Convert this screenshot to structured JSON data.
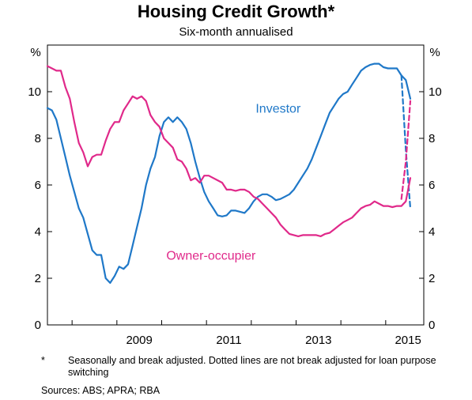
{
  "title": "Housing Credit Growth*",
  "subtitle": "Six-month annualised",
  "footnote_marker": "*",
  "footnote": "Seasonally and break adjusted. Dotted lines are not break adjusted for loan purpose switching",
  "sources": "Sources:  ABS; APRA; RBA",
  "chart_data": {
    "type": "line",
    "y_unit_left": "%",
    "y_unit_right": "%",
    "ylim": [
      0,
      12
    ],
    "xlim": [
      2007.45,
      2015.85
    ],
    "y_ticks": [
      0,
      2,
      4,
      6,
      8,
      10
    ],
    "y_tick_labels": [
      "0",
      "2",
      "4",
      "6",
      "8",
      "10"
    ],
    "x_ticks": [
      2009,
      2011,
      2013,
      2015
    ],
    "x_tick_labels": [
      "2009",
      "2011",
      "2013",
      "2015"
    ],
    "grid": false,
    "series": [
      {
        "name": "Investor",
        "color": "#1f78c8",
        "style": "solid",
        "x": [
          2007.45,
          2007.55,
          2007.65,
          2007.75,
          2007.85,
          2007.95,
          2008.05,
          2008.15,
          2008.25,
          2008.35,
          2008.45,
          2008.55,
          2008.65,
          2008.75,
          2008.85,
          2008.95,
          2009.05,
          2009.15,
          2009.25,
          2009.35,
          2009.45,
          2009.55,
          2009.65,
          2009.75,
          2009.85,
          2009.95,
          2010.05,
          2010.15,
          2010.25,
          2010.35,
          2010.45,
          2010.55,
          2010.65,
          2010.75,
          2010.85,
          2010.95,
          2011.05,
          2011.15,
          2011.25,
          2011.35,
          2011.45,
          2011.55,
          2011.65,
          2011.75,
          2011.85,
          2011.95,
          2012.05,
          2012.15,
          2012.25,
          2012.35,
          2012.45,
          2012.55,
          2012.65,
          2012.75,
          2012.85,
          2012.95,
          2013.05,
          2013.15,
          2013.25,
          2013.35,
          2013.45,
          2013.55,
          2013.65,
          2013.75,
          2013.85,
          2013.95,
          2014.05,
          2014.15,
          2014.25,
          2014.35,
          2014.45,
          2014.55,
          2014.65,
          2014.75,
          2014.85,
          2014.95,
          2015.05,
          2015.15,
          2015.25,
          2015.35,
          2015.45,
          2015.55
        ],
        "values": [
          9.3,
          9.2,
          8.8,
          8.0,
          7.2,
          6.4,
          5.7,
          5.0,
          4.6,
          3.9,
          3.2,
          3.0,
          3.0,
          2.0,
          1.8,
          2.1,
          2.5,
          2.4,
          2.6,
          3.4,
          4.2,
          5.0,
          6.0,
          6.7,
          7.2,
          8.1,
          8.7,
          8.9,
          8.7,
          8.9,
          8.7,
          8.4,
          7.8,
          7.0,
          6.3,
          5.7,
          5.3,
          5.0,
          4.7,
          4.65,
          4.7,
          4.9,
          4.9,
          4.85,
          4.8,
          5.0,
          5.3,
          5.5,
          5.6,
          5.6,
          5.5,
          5.35,
          5.4,
          5.5,
          5.6,
          5.8,
          6.1,
          6.4,
          6.7,
          7.1,
          7.6,
          8.1,
          8.6,
          9.1,
          9.4,
          9.7,
          9.9,
          10.0,
          10.3,
          10.6,
          10.9,
          11.05,
          11.15,
          11.2,
          11.2,
          11.05,
          11.0,
          11.0,
          11.0,
          10.7,
          10.5,
          9.7
        ]
      },
      {
        "name": "Investor (not break adjusted)",
        "color": "#1f78c8",
        "style": "dashed",
        "x": [
          2015.35,
          2015.45,
          2015.55
        ],
        "values": [
          10.7,
          7.5,
          5.0
        ]
      },
      {
        "name": "Owner-occupier",
        "color": "#e0298a",
        "style": "solid",
        "x": [
          2007.45,
          2007.55,
          2007.65,
          2007.75,
          2007.85,
          2007.95,
          2008.05,
          2008.15,
          2008.25,
          2008.35,
          2008.45,
          2008.55,
          2008.65,
          2008.75,
          2008.85,
          2008.95,
          2009.05,
          2009.15,
          2009.25,
          2009.35,
          2009.45,
          2009.55,
          2009.65,
          2009.75,
          2009.85,
          2009.95,
          2010.05,
          2010.15,
          2010.25,
          2010.35,
          2010.45,
          2010.55,
          2010.65,
          2010.75,
          2010.85,
          2010.95,
          2011.05,
          2011.15,
          2011.25,
          2011.35,
          2011.45,
          2011.55,
          2011.65,
          2011.75,
          2011.85,
          2011.95,
          2012.05,
          2012.15,
          2012.25,
          2012.35,
          2012.45,
          2012.55,
          2012.65,
          2012.75,
          2012.85,
          2012.95,
          2013.05,
          2013.15,
          2013.25,
          2013.35,
          2013.45,
          2013.55,
          2013.65,
          2013.75,
          2013.85,
          2013.95,
          2014.05,
          2014.15,
          2014.25,
          2014.35,
          2014.45,
          2014.55,
          2014.65,
          2014.75,
          2014.85,
          2014.95,
          2015.05,
          2015.15,
          2015.25,
          2015.35,
          2015.45,
          2015.55
        ],
        "values": [
          11.1,
          11.0,
          10.9,
          10.9,
          10.2,
          9.7,
          8.7,
          7.8,
          7.4,
          6.8,
          7.2,
          7.3,
          7.3,
          7.9,
          8.4,
          8.7,
          8.7,
          9.2,
          9.5,
          9.8,
          9.7,
          9.8,
          9.6,
          9.0,
          8.7,
          8.5,
          8.0,
          7.8,
          7.6,
          7.1,
          7.0,
          6.7,
          6.2,
          6.3,
          6.1,
          6.4,
          6.4,
          6.3,
          6.2,
          6.1,
          5.8,
          5.8,
          5.75,
          5.8,
          5.8,
          5.7,
          5.5,
          5.4,
          5.2,
          5.0,
          4.8,
          4.6,
          4.3,
          4.1,
          3.9,
          3.85,
          3.8,
          3.85,
          3.85,
          3.85,
          3.85,
          3.8,
          3.9,
          3.95,
          4.1,
          4.25,
          4.4,
          4.5,
          4.6,
          4.8,
          5.0,
          5.1,
          5.15,
          5.3,
          5.2,
          5.1,
          5.1,
          5.05,
          5.1,
          5.1,
          5.3,
          6.3
        ]
      },
      {
        "name": "Owner-occupier (not break adjusted)",
        "color": "#e0298a",
        "style": "dashed",
        "x": [
          2015.35,
          2015.45,
          2015.55
        ],
        "values": [
          5.4,
          7.0,
          9.6
        ]
      }
    ],
    "annotations": [
      {
        "text": "Investor",
        "x": 2012.6,
        "y": 9.1,
        "color": "#1f78c8"
      },
      {
        "text": "Owner-occupier",
        "x": 2011.1,
        "y": 2.8,
        "color": "#e0298a"
      }
    ]
  }
}
